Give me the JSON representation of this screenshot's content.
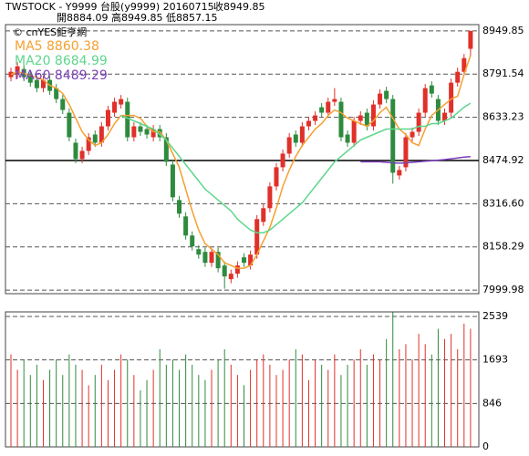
{
  "chart_data": {
    "type": "candlestick",
    "header": {
      "line1": "TWSTOCK - Y9999  台股(y9999) 20160715",
      "close_label": "收8949.85",
      "line2": "開8884.09   高8949.85   低8857.15"
    },
    "watermark": "© cnYES鉅亨網",
    "up_color": "#e0302a",
    "down_color": "#2e8b3e",
    "open": [
      8780,
      8790,
      8810,
      8790,
      8770,
      8740,
      8770,
      8740,
      8700,
      8650,
      8540,
      8480,
      8510,
      8570,
      8540,
      8600,
      8650,
      8680,
      8690,
      8560,
      8600,
      8590,
      8560,
      8590,
      8560,
      8460,
      8330,
      8270,
      8200,
      8150,
      8140,
      8100,
      8140,
      8090,
      8040,
      8060,
      8120,
      8090,
      8130,
      8250,
      8300,
      8380,
      8450,
      8500,
      8570,
      8540,
      8600,
      8620,
      8670,
      8650,
      8690,
      8690,
      8570,
      8540,
      8620,
      8650,
      8600,
      8680,
      8730,
      8700,
      8420,
      8450,
      8560,
      8580,
      8650,
      8750,
      8700,
      8620,
      8650,
      8760,
      8800,
      8884.09
    ],
    "high": [
      8815,
      8835,
      8825,
      8805,
      8785,
      8785,
      8785,
      8755,
      8715,
      8665,
      8555,
      8525,
      8575,
      8585,
      8615,
      8675,
      8705,
      8715,
      8705,
      8615,
      8615,
      8605,
      8605,
      8605,
      8575,
      8475,
      8345,
      8285,
      8215,
      8165,
      8155,
      8155,
      8155,
      8105,
      8075,
      8105,
      8135,
      8145,
      8275,
      8315,
      8395,
      8465,
      8515,
      8575,
      8585,
      8615,
      8635,
      8655,
      8685,
      8705,
      8740,
      8705,
      8585,
      8635,
      8655,
      8665,
      8695,
      8735,
      8745,
      8715,
      8455,
      8575,
      8595,
      8665,
      8755,
      8765,
      8715,
      8665,
      8775,
      8815,
      8865,
      8949.85
    ],
    "low": [
      8765,
      8775,
      8765,
      8745,
      8725,
      8725,
      8715,
      8685,
      8645,
      8545,
      8465,
      8465,
      8495,
      8525,
      8525,
      8585,
      8635,
      8665,
      8545,
      8545,
      8565,
      8555,
      8545,
      8545,
      8455,
      8325,
      8265,
      8185,
      8145,
      8115,
      8085,
      8085,
      8065,
      8005,
      8025,
      8045,
      8085,
      8075,
      8115,
      8235,
      8285,
      8365,
      8435,
      8485,
      8525,
      8525,
      8585,
      8605,
      8635,
      8635,
      8675,
      8545,
      8525,
      8525,
      8605,
      8585,
      8585,
      8665,
      8685,
      8390,
      8405,
      8435,
      8545,
      8565,
      8635,
      8705,
      8605,
      8605,
      8635,
      8745,
      8785,
      8857.15
    ],
    "close": [
      8800,
      8820,
      8780,
      8760,
      8740,
      8770,
      8730,
      8700,
      8660,
      8560,
      8480,
      8510,
      8560,
      8540,
      8600,
      8660,
      8690,
      8700,
      8560,
      8600,
      8580,
      8570,
      8590,
      8560,
      8470,
      8340,
      8280,
      8200,
      8160,
      8130,
      8100,
      8140,
      8080,
      8050,
      8060,
      8090,
      8100,
      8130,
      8260,
      8300,
      8380,
      8450,
      8500,
      8560,
      8540,
      8600,
      8620,
      8640,
      8650,
      8690,
      8700,
      8560,
      8540,
      8620,
      8640,
      8600,
      8680,
      8720,
      8700,
      8430,
      8440,
      8560,
      8580,
      8650,
      8740,
      8720,
      8620,
      8650,
      8760,
      8800,
      8850,
      8949.85
    ],
    "series": [
      {
        "name": "MA5 8860.38",
        "color": "#f5a030",
        "values": [
          8790,
          8800,
          8795,
          8785,
          8780,
          8770,
          8750,
          8740,
          8720,
          8680,
          8630,
          8580,
          8550,
          8530,
          8540,
          8570,
          8610,
          8640,
          8640,
          8640,
          8630,
          8600,
          8580,
          8580,
          8550,
          8500,
          8450,
          8370,
          8290,
          8220,
          8170,
          8150,
          8130,
          8100,
          8090,
          8080,
          8080,
          8090,
          8130,
          8180,
          8230,
          8300,
          8380,
          8440,
          8490,
          8530,
          8560,
          8590,
          8610,
          8640,
          8660,
          8650,
          8630,
          8620,
          8610,
          8600,
          8620,
          8650,
          8670,
          8630,
          8590,
          8570,
          8540,
          8530,
          8590,
          8640,
          8660,
          8680,
          8700,
          8710,
          8790,
          8860.38
        ]
      },
      {
        "name": "MA20 8684.99",
        "color": "#5fd68c",
        "values": [
          null,
          null,
          null,
          null,
          null,
          null,
          null,
          null,
          null,
          null,
          null,
          null,
          null,
          null,
          null,
          null,
          null,
          8640,
          8630,
          8620,
          8610,
          8600,
          8590,
          8570,
          8550,
          8520,
          8490,
          8460,
          8430,
          8400,
          8370,
          8350,
          8330,
          8310,
          8290,
          8260,
          8240,
          8220,
          8210,
          8210,
          8220,
          8240,
          8260,
          8280,
          8300,
          8320,
          8350,
          8380,
          8410,
          8440,
          8470,
          8490,
          8510,
          8530,
          8550,
          8560,
          8570,
          8580,
          8590,
          8590,
          8590,
          8590,
          8590,
          8600,
          8600,
          8610,
          8610,
          8620,
          8630,
          8650,
          8670,
          8684.99
        ]
      },
      {
        "name": "MA60 8489.29",
        "color": "#7a3fb8",
        "values": [
          null,
          null,
          null,
          null,
          null,
          null,
          null,
          null,
          null,
          null,
          null,
          null,
          null,
          null,
          null,
          null,
          null,
          null,
          null,
          null,
          null,
          null,
          null,
          null,
          null,
          null,
          null,
          null,
          null,
          null,
          null,
          null,
          null,
          null,
          null,
          null,
          null,
          null,
          null,
          null,
          null,
          null,
          null,
          null,
          null,
          null,
          null,
          null,
          null,
          null,
          null,
          null,
          null,
          null,
          8470,
          8470,
          8470,
          8470,
          8468,
          8466,
          8465,
          8466,
          8468,
          8470,
          8472,
          8474,
          8476,
          8478,
          8481,
          8484,
          8487,
          8489.29
        ]
      }
    ],
    "volume": [
      1800,
      1500,
      1700,
      1400,
      1600,
      1300,
      1500,
      1700,
      1400,
      1800,
      1600,
      1500,
      1200,
      1400,
      1600,
      1300,
      1500,
      1800,
      1700,
      1400,
      1100,
      1300,
      1500,
      1900,
      1600,
      1700,
      1500,
      1800,
      1600,
      1400,
      1300,
      1500,
      1700,
      1900,
      1600,
      1400,
      1200,
      1500,
      1700,
      1800,
      1600,
      1400,
      1500,
      1700,
      1900,
      1800,
      1300,
      1700,
      1600,
      1500,
      1800,
      1400,
      1600,
      1700,
      1900,
      1600,
      1800,
      1700,
      2100,
      2620,
      1900,
      2000,
      1700,
      2200,
      2000,
      1800,
      2300,
      2100,
      2200,
      1900,
      2400,
      2300
    ],
    "ylim": [
      7986.9,
      8972.7
    ],
    "yticks": [
      7999.98,
      8158.29,
      {
        "value": 8316.6,
        "label": "8316.60"
      },
      8474.92,
      8633.23,
      8791.54,
      8949.85
    ],
    "reference": 8474.92,
    "y2lim": [
      0,
      2628
    ],
    "y2ticks": [
      0,
      846,
      1693,
      2539
    ],
    "grid": true
  }
}
